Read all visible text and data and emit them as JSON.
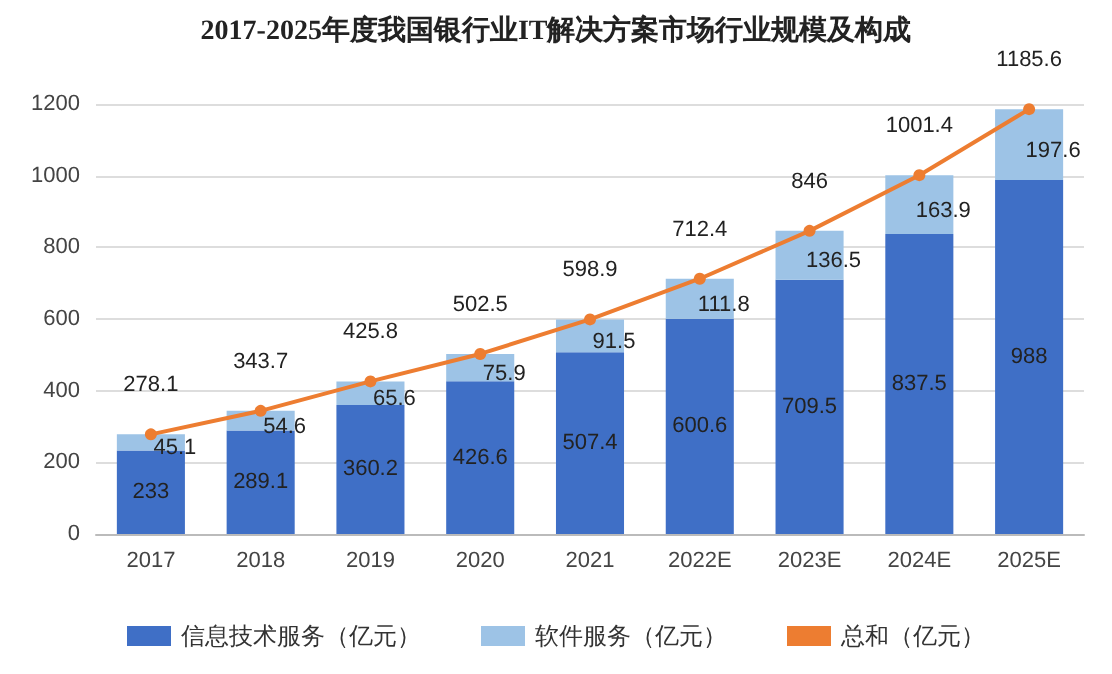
{
  "chart_data": {
    "type": "bar",
    "title": "2017-2025年度我国银行业IT解决方案市场行业规模及构成",
    "categories": [
      "2017",
      "2018",
      "2019",
      "2020",
      "2021",
      "2022E",
      "2023E",
      "2024E",
      "2025E"
    ],
    "stacked": true,
    "series": [
      {
        "name": "信息技术服务（亿元）",
        "color": "#3f6fc6",
        "values": [
          233,
          289.1,
          360.2,
          426.6,
          507.4,
          600.6,
          709.5,
          837.5,
          988
        ]
      },
      {
        "name": "软件服务（亿元）",
        "color": "#9dc3e6",
        "values": [
          45.1,
          54.6,
          65.6,
          75.9,
          91.5,
          111.8,
          136.5,
          163.9,
          197.6
        ]
      },
      {
        "name": "总和（亿元）",
        "type": "line",
        "color": "#ed7d31",
        "values": [
          278.1,
          343.7,
          425.8,
          502.5,
          598.9,
          712.4,
          846,
          1001.4,
          1185.6
        ]
      }
    ],
    "ylim": [
      0,
      1200
    ],
    "yticks": [
      0,
      200,
      400,
      600,
      800,
      1000,
      1200
    ],
    "grid": "y",
    "legend": "bottom",
    "marker": "circle",
    "line_style": "solid",
    "data_labels": true
  }
}
